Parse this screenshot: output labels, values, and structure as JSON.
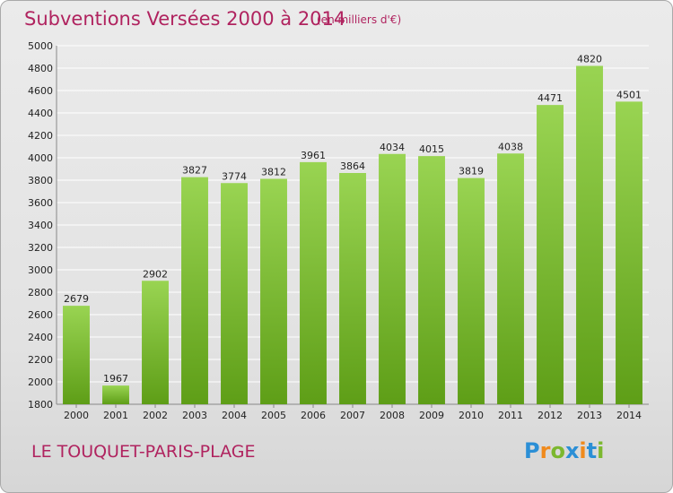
{
  "header": {
    "title": "Subventions Versées 2000 à 2014",
    "subtitle": "(en milliers d'€)"
  },
  "footer": {
    "commune": "LE TOUQUET-PARIS-PLAGE",
    "logo_text": "Proxiti",
    "logo_letters": [
      {
        "ch": "P",
        "color": "#2b8fd6"
      },
      {
        "ch": "r",
        "color": "#f08a1c"
      },
      {
        "ch": "o",
        "color": "#7cb82f"
      },
      {
        "ch": "x",
        "color": "#2b8fd6"
      },
      {
        "ch": "i",
        "color": "#f08a1c"
      },
      {
        "ch": "t",
        "color": "#2b8fd6"
      },
      {
        "ch": "i",
        "color": "#7cb82f"
      }
    ]
  },
  "colors": {
    "accent": "#b0235f",
    "bar_top": "#99d452",
    "bar_bottom": "#5e9e17",
    "grid": "#ffffff",
    "axis_text": "#222222"
  },
  "chart_data": {
    "type": "bar",
    "title": "Subventions Versées 2000 à 2014",
    "subtitle": "(en milliers d'€)",
    "xlabel": "",
    "ylabel": "",
    "categories": [
      "2000",
      "2001",
      "2002",
      "2003",
      "2004",
      "2005",
      "2006",
      "2007",
      "2008",
      "2009",
      "2010",
      "2011",
      "2012",
      "2013",
      "2014"
    ],
    "values": [
      2679,
      1967,
      2902,
      3827,
      3774,
      3812,
      3961,
      3864,
      4034,
      4015,
      3819,
      4038,
      4471,
      4820,
      4501
    ],
    "ylim": [
      1800,
      5000
    ],
    "yticks": [
      1800,
      2000,
      2200,
      2400,
      2600,
      2800,
      3000,
      3200,
      3400,
      3600,
      3800,
      4000,
      4200,
      4400,
      4600,
      4800,
      5000
    ],
    "grid": true,
    "legend": "none"
  }
}
